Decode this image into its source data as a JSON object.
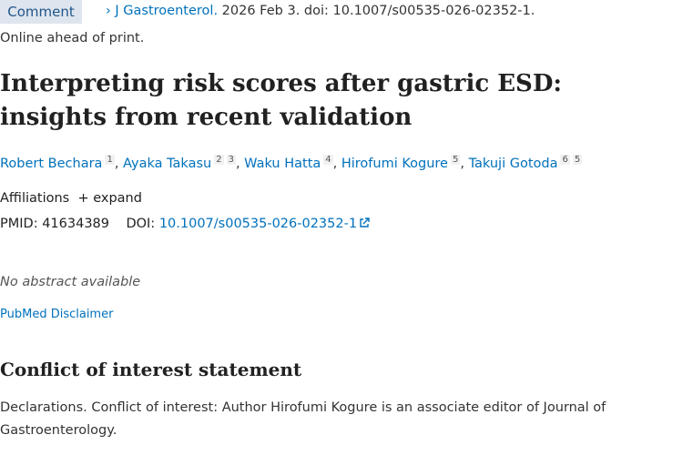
{
  "comment_button": "Comment",
  "citation": {
    "chevron": "›",
    "journal": "J Gastroenterol.",
    "details": " 2026 Feb 3. doi: 10.1007/s00535-026-02352-1."
  },
  "status": "Online ahead of print.",
  "title": "Interpreting risk scores after gastric ESD: insights from recent validation",
  "authors": [
    {
      "name": "Robert Bechara",
      "sups": [
        "1"
      ]
    },
    {
      "name": "Ayaka Takasu",
      "sups": [
        "2",
        "3"
      ]
    },
    {
      "name": "Waku Hatta",
      "sups": [
        "4"
      ]
    },
    {
      "name": "Hirofumi Kogure",
      "sups": [
        "5"
      ]
    },
    {
      "name": "Takuji Gotoda",
      "sups": [
        "6",
        "5"
      ]
    }
  ],
  "affiliations": {
    "label": "Affiliations",
    "expand": "+ expand"
  },
  "ids": {
    "pmid_label": "PMID:",
    "pmid": "41634389",
    "doi_label": "DOI:",
    "doi": "10.1007/s00535-026-02352-1"
  },
  "no_abstract": "No abstract available",
  "disclaimer": "PubMed Disclaimer",
  "coi": {
    "heading": "Conflict of interest statement",
    "text": "Declarations. Conflict of interest: Author Hirofumi Kogure is an associate editor of Journal of Gastroenterology."
  }
}
